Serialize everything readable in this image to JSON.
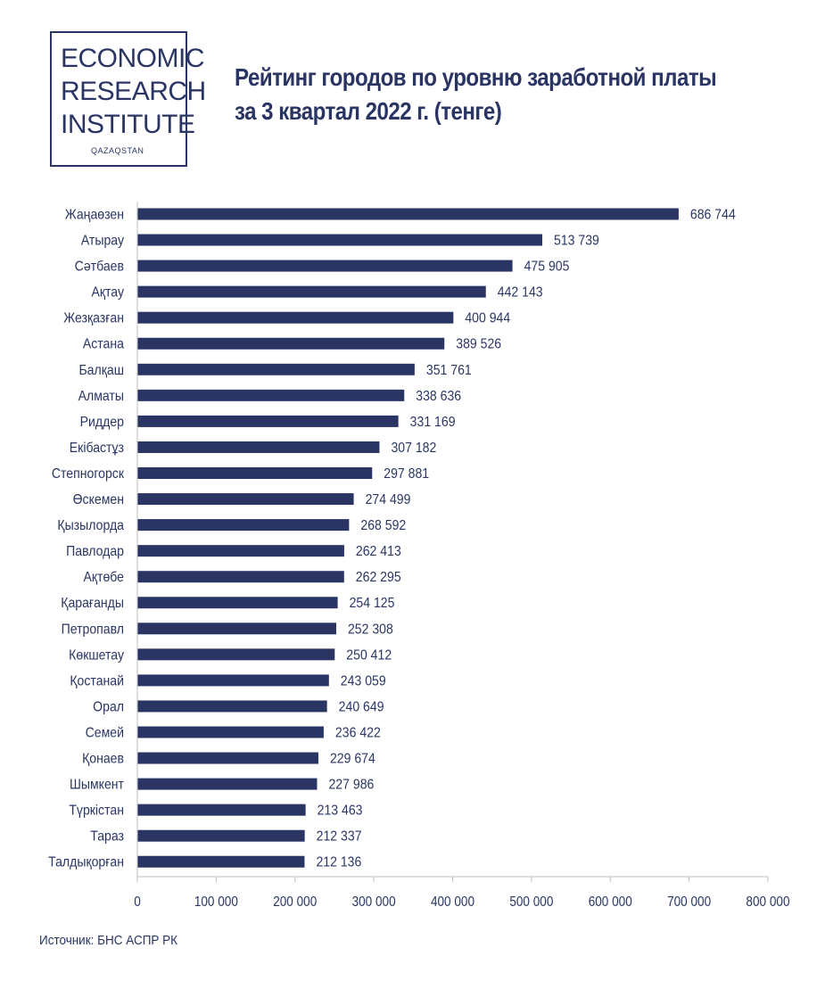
{
  "logo": {
    "lines": [
      "ECONOMIC",
      "RESEARCH",
      "INSTITUTE"
    ],
    "sub": "QAZAQSTAN"
  },
  "title_line1": "Рейтинг городов по уровню заработной платы",
  "title_line2": "за 3 квартал 2022 г. (тенге)",
  "source": "Источник: БНС АСПР РК",
  "colors": {
    "bar": "#2a3564",
    "text": "#2a3564",
    "axis": "#bfbfbf"
  },
  "chart_data": {
    "type": "bar",
    "orientation": "horizontal",
    "title": "Рейтинг городов по уровню заработной платы за 3 квартал 2022 г. (тенге)",
    "categories": [
      "Жаңаөзен",
      "Атырау",
      "Сәтбаев",
      "Ақтау",
      "Жезқазған",
      "Астана",
      "Балқаш",
      "Алматы",
      "Риддер",
      "Екібастұз",
      "Степногорск",
      "Өскемен",
      "Қызылорда",
      "Павлодар",
      "Ақтөбе",
      "Қарағанды",
      "Петропавл",
      "Көкшетау",
      "Қостанай",
      "Орал",
      "Семей",
      "Қонаев",
      "Шымкент",
      "Түркістан",
      "Тараз",
      "Талдықорған"
    ],
    "values": [
      686744,
      513739,
      475905,
      442143,
      400944,
      389526,
      351761,
      338636,
      331169,
      307182,
      297881,
      274499,
      268592,
      262413,
      262295,
      254125,
      252308,
      250412,
      243059,
      240649,
      236422,
      229674,
      227986,
      213463,
      212337,
      212136
    ],
    "value_labels": [
      "686 744",
      "513 739",
      "475 905",
      "442 143",
      "400 944",
      "389 526",
      "351 761",
      "338 636",
      "331 169",
      "307 182",
      "297 881",
      "274 499",
      "268 592",
      "262 413",
      "262 295",
      "254 125",
      "252 308",
      "250 412",
      "243 059",
      "240 649",
      "236 422",
      "229 674",
      "227 986",
      "213 463",
      "212 337",
      "212 136"
    ],
    "xlim": [
      0,
      800000
    ],
    "xticks": [
      0,
      100000,
      200000,
      300000,
      400000,
      500000,
      600000,
      700000,
      800000
    ],
    "xtick_labels": [
      "0",
      "100 000",
      "200 000",
      "300 000",
      "400 000",
      "500 000",
      "600 000",
      "700 000",
      "800 000"
    ],
    "xlabel": "",
    "ylabel": "",
    "grid": false,
    "legend": "none"
  }
}
